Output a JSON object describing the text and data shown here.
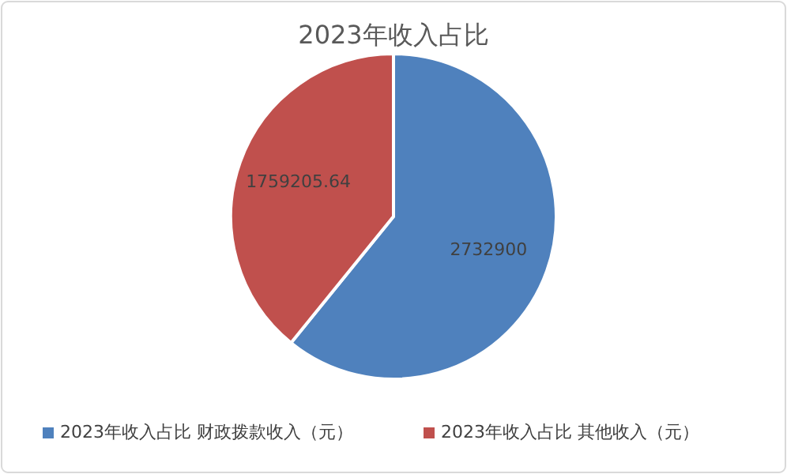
{
  "chart_data": {
    "type": "pie",
    "title": "2023年收入占比",
    "categories": [
      "2023年收入占比 财政拨款收入（元）",
      "2023年收入占比 其他收入（元）"
    ],
    "values": [
      2732900,
      1759205.64
    ],
    "colors": [
      "#4f81bd",
      "#c0504d"
    ],
    "data_labels": true,
    "legend": "bottom"
  }
}
